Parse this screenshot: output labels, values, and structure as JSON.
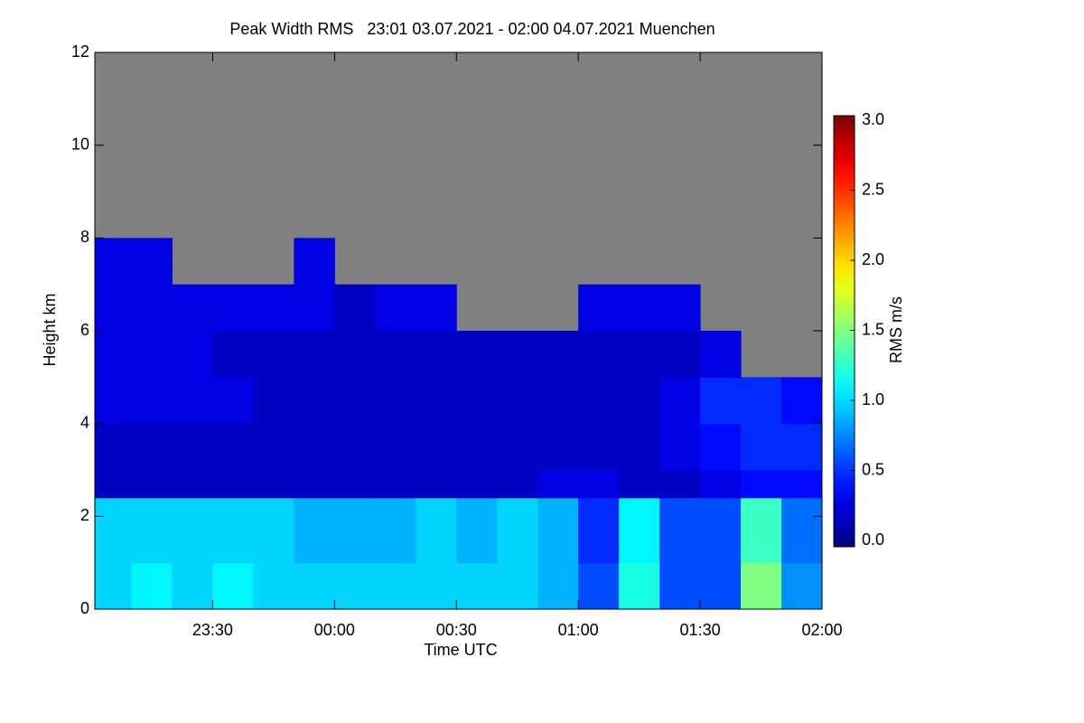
{
  "chart_data": {
    "type": "heatmap",
    "title": "Peak Width RMS   23:01 03.07.2021 - 02:00 04.07.2021 Muenchen",
    "x_label": "Time UTC",
    "y_label": "Height km",
    "xlim": [
      "23:01",
      "02:00"
    ],
    "xticks": [
      "23:30",
      "00:00",
      "00:30",
      "01:00",
      "01:30",
      "02:00"
    ],
    "ylim": [
      0,
      12
    ],
    "yticks": [
      0,
      2,
      4,
      6,
      8,
      10,
      12
    ],
    "x_bins": [
      "23:01",
      "23:10",
      "23:20",
      "23:30",
      "23:40",
      "23:50",
      "00:00",
      "00:10",
      "00:20",
      "00:30",
      "00:40",
      "00:50",
      "01:00",
      "01:10",
      "01:20",
      "01:30",
      "01:40",
      "01:50",
      "02:00"
    ],
    "y_bins": [
      0,
      1,
      2.4,
      3,
      4,
      5,
      6,
      7,
      8,
      12
    ],
    "z": [
      [
        1.0,
        1.1,
        1.0,
        1.1,
        1.0,
        1.0,
        1.0,
        1.0,
        1.0,
        1.0,
        1.0,
        0.9,
        0.6,
        1.2,
        0.6,
        0.6,
        1.5,
        0.8
      ],
      [
        1.0,
        1.0,
        1.0,
        1.0,
        1.0,
        0.9,
        0.9,
        0.9,
        1.0,
        0.9,
        1.0,
        0.9,
        0.5,
        1.1,
        0.6,
        0.6,
        1.3,
        0.7
      ],
      [
        0.2,
        0.2,
        0.2,
        0.2,
        0.2,
        0.2,
        0.2,
        0.2,
        0.2,
        0.2,
        0.2,
        0.3,
        0.3,
        0.2,
        0.2,
        0.3,
        0.4,
        0.4
      ],
      [
        0.2,
        0.2,
        0.2,
        0.2,
        0.2,
        0.2,
        0.2,
        0.2,
        0.2,
        0.2,
        0.2,
        0.2,
        0.2,
        0.2,
        0.3,
        0.4,
        0.5,
        0.5
      ],
      [
        0.3,
        0.3,
        0.3,
        0.3,
        0.2,
        0.2,
        0.2,
        0.2,
        0.2,
        0.2,
        0.2,
        0.2,
        0.2,
        0.2,
        0.3,
        0.5,
        0.5,
        0.4
      ],
      [
        0.3,
        0.3,
        0.3,
        0.2,
        0.2,
        0.2,
        0.2,
        0.2,
        0.2,
        0.2,
        0.2,
        0.2,
        0.2,
        0.2,
        0.2,
        0.3,
        null,
        null
      ],
      [
        0.3,
        0.3,
        0.3,
        0.3,
        0.3,
        0.3,
        0.2,
        0.3,
        0.3,
        null,
        null,
        null,
        0.3,
        0.3,
        0.3,
        null,
        null,
        null
      ],
      [
        0.3,
        0.3,
        null,
        null,
        null,
        0.3,
        null,
        null,
        null,
        null,
        null,
        null,
        null,
        null,
        null,
        null,
        null,
        null
      ],
      [
        null,
        null,
        null,
        null,
        null,
        null,
        null,
        null,
        null,
        null,
        null,
        null,
        null,
        null,
        null,
        null,
        null,
        null
      ]
    ],
    "missing_color": "#808080",
    "colormap": "jet",
    "colorbar_label": "RMS m/s",
    "clim": [
      0,
      3
    ],
    "cticks": [
      {
        "value": 0,
        "label": "0.0"
      },
      {
        "value": 0.5,
        "label": "0.5"
      },
      {
        "value": 1,
        "label": "1.0"
      },
      {
        "value": 1.5,
        "label": "1.5"
      },
      {
        "value": 2,
        "label": "2.0"
      },
      {
        "value": 2.5,
        "label": "2.5"
      },
      {
        "value": 3,
        "label": "3.0"
      }
    ]
  }
}
